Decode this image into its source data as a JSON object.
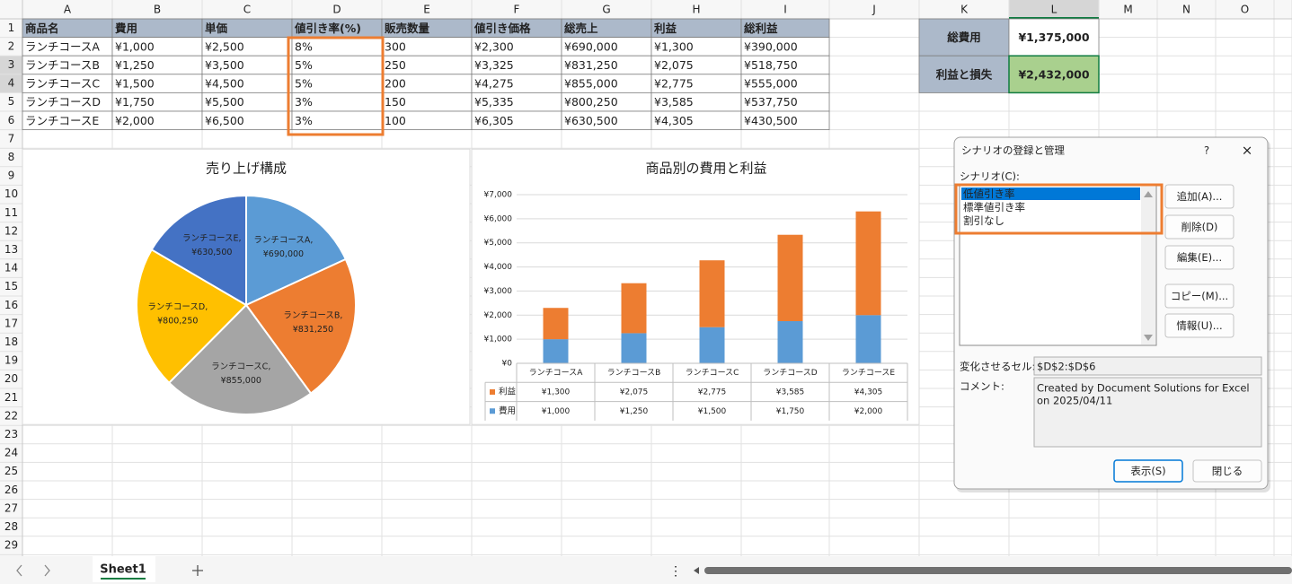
{
  "column_headers": [
    "A",
    "B",
    "C",
    "D",
    "E",
    "F",
    "G",
    "H",
    "I",
    "J",
    "K",
    "L",
    "M",
    "N",
    "O"
  ],
  "row_headers": [
    1,
    2,
    3,
    4,
    5,
    6,
    7,
    8,
    9,
    10,
    11,
    12,
    13,
    14,
    15,
    16,
    17,
    18,
    19,
    20,
    21,
    22,
    23,
    24,
    25,
    26,
    27,
    28,
    29
  ],
  "table": {
    "header": [
      "商品名",
      "費用",
      "単価",
      "値引き率(%)",
      "販売数量",
      "値引き価格",
      "総売上",
      "利益",
      "総利益"
    ],
    "rows": [
      [
        "ランチコースA",
        "¥1,000",
        "¥2,500",
        "8%",
        "300",
        "¥2,300",
        "¥690,000",
        "¥1,300",
        "¥390,000"
      ],
      [
        "ランチコースB",
        "¥1,250",
        "¥3,500",
        "5%",
        "250",
        "¥3,325",
        "¥831,250",
        "¥2,075",
        "¥518,750"
      ],
      [
        "ランチコースC",
        "¥1,500",
        "¥4,500",
        "5%",
        "200",
        "¥4,275",
        "¥855,000",
        "¥2,775",
        "¥555,000"
      ],
      [
        "ランチコースD",
        "¥1,750",
        "¥5,500",
        "3%",
        "150",
        "¥5,335",
        "¥800,250",
        "¥3,585",
        "¥537,750"
      ],
      [
        "ランチコースE",
        "¥2,000",
        "¥6,500",
        "3%",
        "100",
        "¥6,305",
        "¥630,500",
        "¥4,305",
        "¥430,500"
      ]
    ]
  },
  "summary": [
    {
      "label": "総費用",
      "value": "¥1,375,000"
    },
    {
      "label": "利益と損失",
      "value": "¥2,432,000"
    }
  ],
  "chart_data": [
    {
      "type": "pie",
      "title": "売り上げ構成",
      "categories": [
        "ランチコースA",
        "ランチコースB",
        "ランチコースC",
        "ランチコースD",
        "ランチコースE"
      ],
      "values": [
        690000,
        831250,
        855000,
        800250,
        630500
      ],
      "value_labels": [
        "¥690,000",
        "¥831,250",
        "¥855,000",
        "¥800,250",
        "¥630,500"
      ],
      "label_separator": ",",
      "colors": [
        "#5b9bd5",
        "#ed7d31",
        "#a5a5a5",
        "#ffc000",
        "#4472c4"
      ]
    },
    {
      "type": "bar",
      "stacked": true,
      "title": "商品別の費用と利益",
      "categories": [
        "ランチコースA",
        "ランチコースB",
        "ランチコースC",
        "ランチコースD",
        "ランチコースE"
      ],
      "series": [
        {
          "name": "費用",
          "color": "#5b9bd5",
          "values": [
            1000,
            1250,
            1500,
            1750,
            2000
          ],
          "value_labels": [
            "¥1,000",
            "¥1,250",
            "¥1,500",
            "¥1,750",
            "¥2,000"
          ]
        },
        {
          "name": "利益",
          "color": "#ed7d31",
          "values": [
            1300,
            2075,
            2775,
            3585,
            4305
          ],
          "value_labels": [
            "¥1,300",
            "¥2,075",
            "¥2,775",
            "¥3,585",
            "¥4,305"
          ]
        }
      ],
      "ylim": [
        0,
        7000
      ],
      "yticks": [
        {
          "value": 0,
          "label": "¥0"
        },
        {
          "value": 1000,
          "label": "¥1,000"
        },
        {
          "value": 2000,
          "label": "¥2,000"
        },
        {
          "value": 3000,
          "label": "¥3,000"
        },
        {
          "value": 4000,
          "label": "¥4,000"
        },
        {
          "value": 5000,
          "label": "¥5,000"
        },
        {
          "value": 6000,
          "label": "¥6,000"
        },
        {
          "value": 7000,
          "label": "¥7,000"
        }
      ],
      "grid": true,
      "data_table": true
    }
  ],
  "dialog": {
    "title": "シナリオの登録と管理",
    "help": "?",
    "close": "×",
    "list_label": "シナリオ(C):",
    "scenarios": [
      "低値引き率",
      "標準値引き率",
      "割引なし"
    ],
    "buttons": [
      "追加(A)...",
      "削除(D)",
      "編集(E)...",
      "コピー(M)...",
      "情報(U)..."
    ],
    "changing_cells_label": "変化させるセル:",
    "changing_cells": "$D$2:$D$6",
    "comment_label": "コメント:",
    "comment_lines": [
      "Created by Document Solutions for Excel",
      "on 2025/04/11"
    ],
    "show_button": "表示(S)",
    "close_button": "閉じる"
  },
  "sheet_tabs": [
    "Sheet1"
  ]
}
